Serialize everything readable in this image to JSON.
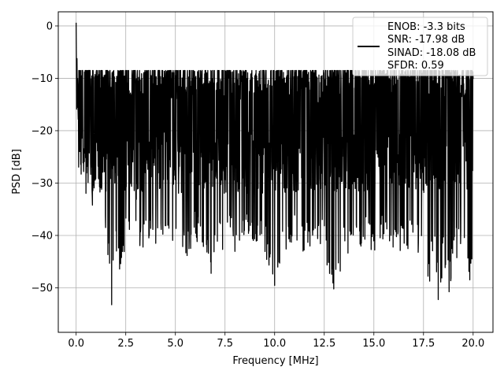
{
  "chart_data": {
    "type": "line",
    "title": "",
    "xlabel": "Frequency [MHz]",
    "ylabel": "PSD [dB]",
    "xlim": [
      -0.9,
      21.0
    ],
    "ylim": [
      -58.5,
      2.7
    ],
    "xticks": [
      0.0,
      2.5,
      5.0,
      7.5,
      10.0,
      12.5,
      15.0,
      17.5,
      20.0
    ],
    "xtick_labels": [
      "0.0",
      "2.5",
      "5.0",
      "7.5",
      "10.0",
      "12.5",
      "15.0",
      "17.5",
      "20.0"
    ],
    "yticks": [
      0,
      -10,
      -20,
      -30,
      -40,
      -50
    ],
    "ytick_labels": [
      "0",
      "−10",
      "−20",
      "−30",
      "−40",
      "−50"
    ],
    "grid": true,
    "legend_position": "top-right",
    "legend_entries": [
      "ENOB: -3.3 bits",
      "SNR: -17.98 dB",
      "SINAD: -18.08 dB",
      "SFDR: 0.59"
    ],
    "series": [
      {
        "color": "#000000",
        "x": [
          0.0,
          0.01,
          0.02,
          0.04,
          0.06,
          0.08,
          0.1,
          0.13,
          0.17,
          0.2,
          0.25,
          0.3,
          0.4,
          0.5,
          0.6,
          0.8,
          1.0,
          1.2,
          1.5,
          1.75,
          2.0,
          2.25,
          2.5,
          3.0,
          3.3,
          3.5,
          4.0,
          4.5,
          4.8,
          5.0,
          5.5,
          6.0,
          6.5,
          6.8,
          7.0,
          7.5,
          7.9,
          8.0,
          8.5,
          9.0,
          9.5,
          10.0,
          10.5,
          11.0,
          11.5,
          12.0,
          12.5,
          13.0,
          13.5,
          14.0,
          14.5,
          15.0,
          15.5,
          16.0,
          16.5,
          17.0,
          17.5,
          17.8,
          18.0,
          18.3,
          18.5,
          18.8,
          19.0,
          19.5,
          19.8,
          20.0
        ],
        "y": [
          0.0,
          -4.0,
          -17.0,
          -6.0,
          -15.0,
          -10.0,
          -20.0,
          -13.0,
          -28.5,
          -22.0,
          -25.0,
          -20.0,
          -30.0,
          -25.0,
          -27.0,
          -35.0,
          -30.0,
          -33.0,
          -40.0,
          -55.0,
          -44.0,
          -50.0,
          -42.0,
          -38.0,
          -44.0,
          -40.0,
          -42.0,
          -41.0,
          -47.0,
          -43.0,
          -45.0,
          -41.0,
          -43.0,
          -49.0,
          -42.0,
          -43.0,
          -41.0,
          -44.0,
          -42.0,
          -41.0,
          -43.0,
          -52.0,
          -43.0,
          -41.0,
          -44.0,
          -42.0,
          -43.0,
          -54.0,
          -43.0,
          -44.0,
          -42.0,
          -43.0,
          -41.0,
          -44.0,
          -43.0,
          -42.0,
          -45.0,
          -50.0,
          -43.0,
          -55.0,
          -44.0,
          -52.0,
          -45.0,
          -43.0,
          -50.0,
          -42.0
        ]
      }
    ]
  }
}
